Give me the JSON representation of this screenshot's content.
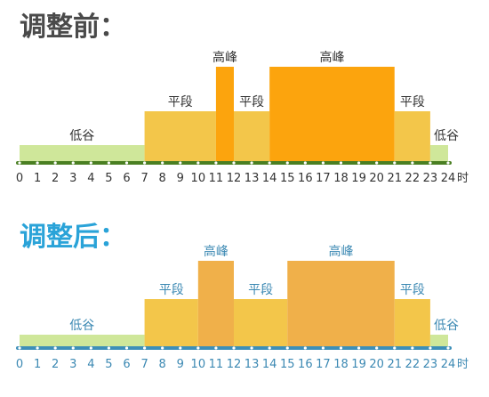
{
  "colors": {
    "valley": "#cfe79a",
    "flat": "#f3c64a",
    "peak_before": "#fca40d",
    "peak_after": "#f0b04a",
    "axis_before": "#4a7f22",
    "axis_after": "#3d8fb8",
    "labels_before": "#333333",
    "labels_after": "#3c89b3",
    "title_before": "#4a4a4a",
    "title_after": "#2aa3d8"
  },
  "panels": [
    {
      "id": "before",
      "title": "调整前：",
      "hour_unit": "时",
      "segments": [
        {
          "start": 0,
          "end": 7,
          "level": "valley"
        },
        {
          "start": 7,
          "end": 11,
          "level": "flat"
        },
        {
          "start": 11,
          "end": 12,
          "level": "peak"
        },
        {
          "start": 12,
          "end": 14,
          "level": "flat"
        },
        {
          "start": 14,
          "end": 21,
          "level": "peak"
        },
        {
          "start": 21,
          "end": 23,
          "level": "flat"
        },
        {
          "start": 23,
          "end": 24,
          "level": "valley"
        }
      ],
      "labels": [
        {
          "text": "低谷",
          "center_hour": 3.5,
          "level": "valley"
        },
        {
          "text": "平段",
          "center_hour": 9.0,
          "level": "flat"
        },
        {
          "text": "高峰",
          "center_hour": 11.5,
          "level": "peak"
        },
        {
          "text": "平段",
          "center_hour": 13.0,
          "level": "flat"
        },
        {
          "text": "高峰",
          "center_hour": 17.5,
          "level": "peak"
        },
        {
          "text": "平段",
          "center_hour": 22.0,
          "level": "flat"
        },
        {
          "text": "低谷",
          "center_hour": 23.9,
          "level": "valley"
        }
      ]
    },
    {
      "id": "after",
      "title": "调整后：",
      "hour_unit": "时",
      "segments": [
        {
          "start": 0,
          "end": 7,
          "level": "valley"
        },
        {
          "start": 7,
          "end": 10,
          "level": "flat"
        },
        {
          "start": 10,
          "end": 12,
          "level": "peak"
        },
        {
          "start": 12,
          "end": 15,
          "level": "flat"
        },
        {
          "start": 15,
          "end": 21,
          "level": "peak"
        },
        {
          "start": 21,
          "end": 23,
          "level": "flat"
        },
        {
          "start": 23,
          "end": 24,
          "level": "valley"
        }
      ],
      "labels": [
        {
          "text": "低谷",
          "center_hour": 3.5,
          "level": "valley"
        },
        {
          "text": "平段",
          "center_hour": 8.5,
          "level": "flat"
        },
        {
          "text": "高峰",
          "center_hour": 11.0,
          "level": "peak"
        },
        {
          "text": "平段",
          "center_hour": 13.5,
          "level": "flat"
        },
        {
          "text": "高峰",
          "center_hour": 18.0,
          "level": "peak"
        },
        {
          "text": "平段",
          "center_hour": 22.0,
          "level": "flat"
        },
        {
          "text": "低谷",
          "center_hour": 23.9,
          "level": "valley"
        }
      ]
    }
  ]
}
